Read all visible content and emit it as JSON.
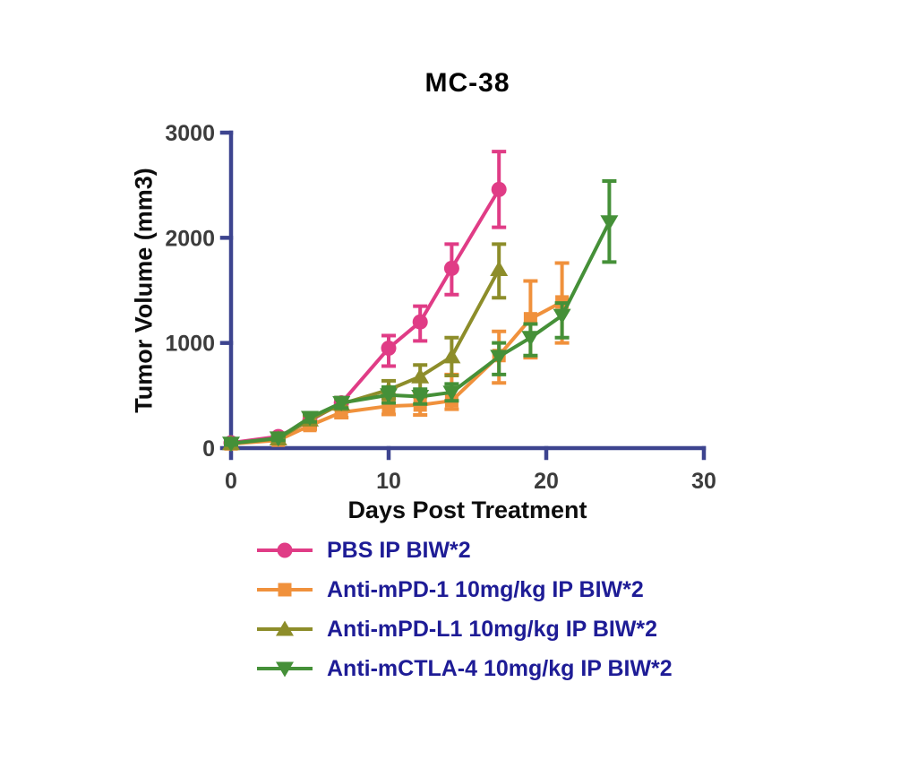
{
  "chart_data": {
    "type": "line",
    "title": "MC-38",
    "xlabel": "Days Post Treatment",
    "ylabel": "Tumor Volume (mm3)",
    "xlim": [
      0,
      30
    ],
    "ylim": [
      0,
      3000
    ],
    "x_ticks": [
      0,
      10,
      20,
      30
    ],
    "y_ticks": [
      0,
      1000,
      2000,
      3000
    ],
    "grid": false,
    "error_bars": true,
    "legend_position": "below-left",
    "series": [
      {
        "id": "pbs",
        "name": "PBS IP BIW*2",
        "color": "#e03c86",
        "marker": "circle",
        "days": [
          0,
          3,
          5,
          7,
          10,
          12,
          14,
          17
        ],
        "values": [
          50,
          110,
          260,
          430,
          950,
          1200,
          1710,
          2460
        ],
        "err_low": [
          30,
          80,
          210,
          380,
          780,
          1020,
          1460,
          2100
        ],
        "err_high": [
          70,
          140,
          310,
          480,
          1070,
          1350,
          1940,
          2820
        ]
      },
      {
        "id": "anti-mpd-1",
        "name": "Anti-mPD-1 10mg/kg IP BIW*2",
        "color": "#f0913c",
        "marker": "square",
        "days": [
          0,
          3,
          5,
          7,
          10,
          12,
          14,
          17,
          19,
          21
        ],
        "values": [
          40,
          75,
          215,
          340,
          400,
          410,
          450,
          880,
          1230,
          1390
        ],
        "err_low": [
          25,
          55,
          180,
          290,
          320,
          315,
          370,
          620,
          860,
          1000
        ],
        "err_high": [
          60,
          95,
          250,
          390,
          480,
          505,
          700,
          1110,
          1590,
          1760
        ]
      },
      {
        "id": "anti-mpd-l1",
        "name": "Anti-mPD-L1 10mg/kg IP BIW*2",
        "color": "#8d8d2a",
        "marker": "triangle-up",
        "days": [
          0,
          3,
          5,
          7,
          10,
          12,
          14,
          17
        ],
        "values": [
          45,
          90,
          270,
          420,
          555,
          680,
          870,
          1700
        ],
        "err_low": [
          30,
          70,
          230,
          370,
          470,
          490,
          690,
          1430
        ],
        "err_high": [
          65,
          110,
          310,
          470,
          640,
          790,
          1050,
          1940
        ]
      },
      {
        "id": "anti-mctla-4",
        "name": "Anti-mCTLA-4 10mg/kg IP BIW*2",
        "color": "#459038",
        "marker": "triangle-down",
        "days": [
          0,
          3,
          5,
          7,
          10,
          12,
          14,
          17,
          19,
          21,
          24
        ],
        "values": [
          45,
          95,
          290,
          430,
          505,
          490,
          530,
          870,
          1050,
          1260,
          2150
        ],
        "err_low": [
          30,
          75,
          250,
          380,
          430,
          420,
          450,
          700,
          880,
          1050,
          1770
        ],
        "err_high": [
          65,
          115,
          330,
          480,
          580,
          560,
          610,
          1000,
          1180,
          1380,
          2540
        ]
      }
    ]
  },
  "colors": {
    "axis": "#3d448f",
    "tick_label": "#3c3c3c",
    "title": "#000000",
    "axis_label": "#0d0d0d",
    "legend_text": "#1e1c96",
    "background": "#ffffff"
  }
}
